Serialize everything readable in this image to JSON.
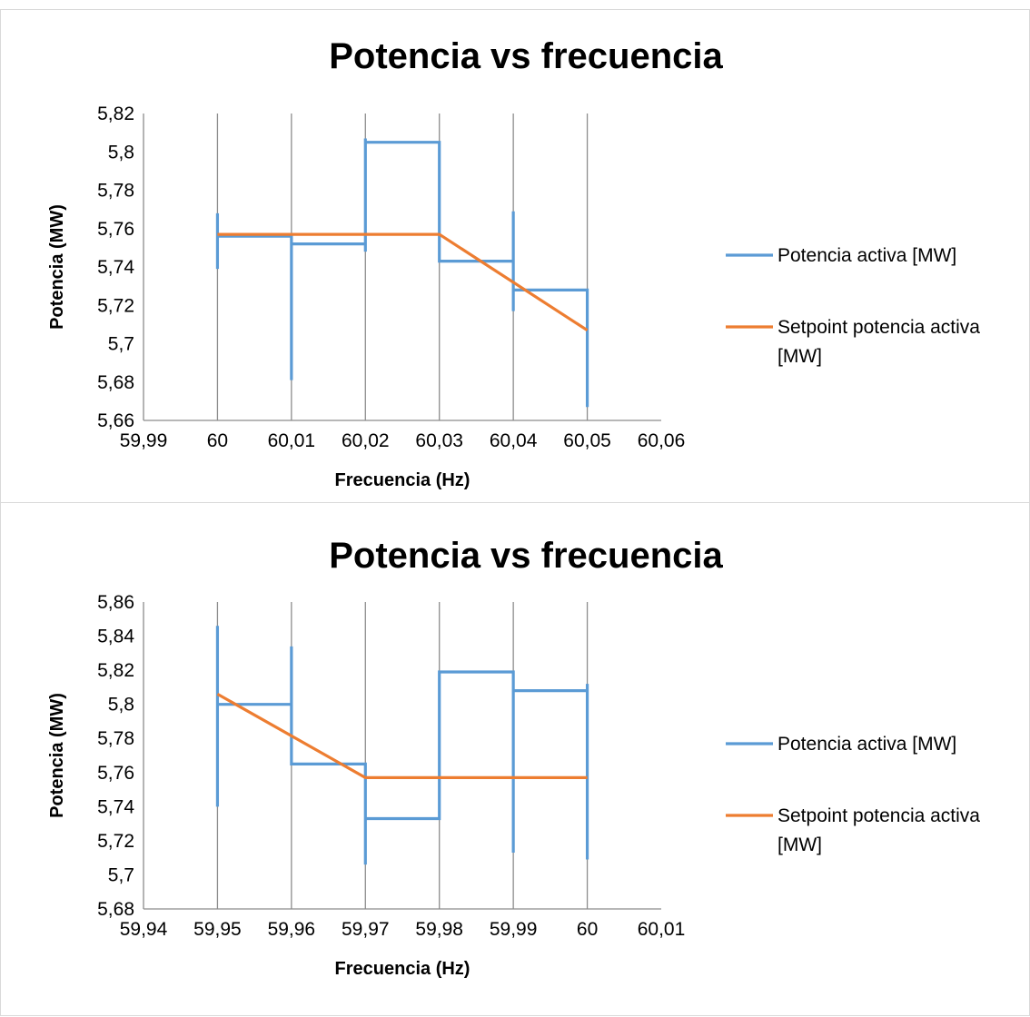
{
  "chart_data": [
    {
      "type": "line",
      "title": "Potencia vs frecuencia",
      "xlabel": "Frecuencia (Hz)",
      "ylabel": "Potencia (MW)",
      "xlim": [
        59.99,
        60.06
      ],
      "ylim": [
        5.66,
        5.82
      ],
      "x_ticks": [
        "59,99",
        "60",
        "60,01",
        "60,02",
        "60,03",
        "60,04",
        "60,05",
        "60,06"
      ],
      "y_ticks": [
        "5,66",
        "5,68",
        "5,7",
        "5,72",
        "5,74",
        "5,76",
        "5,78",
        "5,8",
        "5,82"
      ],
      "vertical_grid_at": [
        60,
        60.01,
        60.02,
        60.03,
        60.04,
        60.05
      ],
      "legend_position": "right",
      "series": [
        {
          "name": "Potencia activa [MW]",
          "color": "#5b9bd5",
          "points": [
            [
              60,
              5.768
            ],
            [
              60,
              5.739
            ],
            [
              60,
              5.756
            ],
            [
              60.01,
              5.756
            ],
            [
              60.01,
              5.681
            ],
            [
              60.01,
              5.752
            ],
            [
              60.02,
              5.752
            ],
            [
              60.02,
              5.748
            ],
            [
              60.02,
              5.807
            ],
            [
              60.02,
              5.805
            ],
            [
              60.03,
              5.805
            ],
            [
              60.03,
              5.743
            ],
            [
              60.04,
              5.743
            ],
            [
              60.04,
              5.769
            ],
            [
              60.04,
              5.717
            ],
            [
              60.04,
              5.728
            ],
            [
              60.05,
              5.728
            ],
            [
              60.05,
              5.667
            ]
          ]
        },
        {
          "name": "Setpoint potencia activa [MW]",
          "color": "#ed7d31",
          "points": [
            [
              60,
              5.757
            ],
            [
              60.03,
              5.757
            ],
            [
              60.05,
              5.707
            ]
          ]
        }
      ]
    },
    {
      "type": "line",
      "title": "Potencia vs frecuencia",
      "xlabel": "Frecuencia (Hz)",
      "ylabel": "Potencia (MW)",
      "xlim": [
        59.94,
        60.01
      ],
      "ylim": [
        5.68,
        5.86
      ],
      "x_ticks": [
        "59,94",
        "59,95",
        "59,96",
        "59,97",
        "59,98",
        "59,99",
        "60",
        "60,01"
      ],
      "y_ticks": [
        "5,68",
        "5,7",
        "5,72",
        "5,74",
        "5,76",
        "5,78",
        "5,8",
        "5,82",
        "5,84",
        "5,86"
      ],
      "vertical_grid_at": [
        59.95,
        59.96,
        59.97,
        59.98,
        59.99,
        60
      ],
      "legend_position": "right",
      "series": [
        {
          "name": "Potencia activa [MW]",
          "color": "#5b9bd5",
          "points": [
            [
              59.95,
              5.846
            ],
            [
              59.95,
              5.74
            ],
            [
              59.95,
              5.8
            ],
            [
              59.96,
              5.8
            ],
            [
              59.96,
              5.834
            ],
            [
              59.96,
              5.765
            ],
            [
              59.97,
              5.765
            ],
            [
              59.97,
              5.706
            ],
            [
              59.97,
              5.733
            ],
            [
              59.98,
              5.733
            ],
            [
              59.98,
              5.819
            ],
            [
              59.99,
              5.819
            ],
            [
              59.99,
              5.713
            ],
            [
              59.99,
              5.808
            ],
            [
              60,
              5.808
            ],
            [
              60,
              5.812
            ],
            [
              60,
              5.709
            ]
          ]
        },
        {
          "name": "Setpoint potencia activa [MW]",
          "color": "#ed7d31",
          "points": [
            [
              59.95,
              5.806
            ],
            [
              59.97,
              5.757
            ],
            [
              60,
              5.757
            ]
          ]
        }
      ]
    }
  ]
}
